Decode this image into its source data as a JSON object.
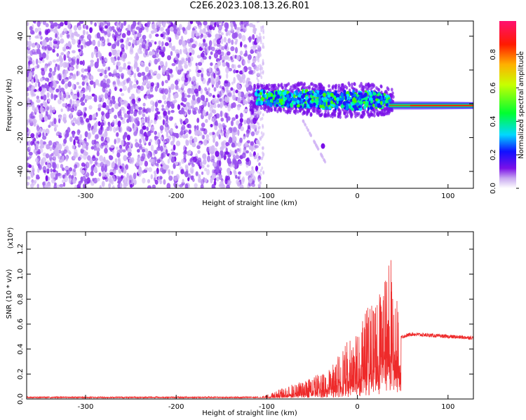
{
  "title": "C2E6.2023.108.13.26.R01",
  "colors": {
    "axis": "#000000",
    "snr_line": "#ee2a2a",
    "noise_purple": "#7a10e8",
    "noise_light": "#d2b7f5"
  },
  "chart_data": [
    {
      "type": "heatmap",
      "title": "",
      "xlabel": "Height of straight line (km)",
      "ylabel": "Frequency (Hz)",
      "xlim": [
        -365,
        128
      ],
      "ylim": [
        -50,
        49
      ],
      "x_ticks": [
        -300,
        -200,
        -100,
        0,
        100
      ],
      "x_tick_labels": [
        "-300",
        "-200",
        "-100",
        "0",
        "100"
      ],
      "y_ticks": [
        -40,
        -20,
        0,
        20,
        40
      ],
      "y_tick_labels": [
        "-40",
        "-20",
        "0",
        "20",
        "40"
      ],
      "noise_region_x": [
        -365,
        -108
      ],
      "signal_band": [
        {
          "x": -115,
          "freq": 4,
          "width": 6,
          "amp": 0.3
        },
        {
          "x": -90,
          "freq": 3,
          "width": 7,
          "amp": 0.35
        },
        {
          "x": -60,
          "freq": 3,
          "width": 8,
          "amp": 0.35
        },
        {
          "x": -30,
          "freq": 2,
          "width": 8,
          "amp": 0.35
        },
        {
          "x": 0,
          "freq": 2,
          "width": 9,
          "amp": 0.35
        },
        {
          "x": 30,
          "freq": 2,
          "width": 7,
          "amp": 0.4
        },
        {
          "x": 60,
          "freq": 0,
          "width": 4,
          "amp": 0.6
        },
        {
          "x": 128,
          "freq": -2,
          "width": 3,
          "amp": 0.9
        }
      ],
      "faint_feature": {
        "x": [
          -60,
          -35
        ],
        "freq": [
          -10,
          -35
        ]
      },
      "grid": false,
      "colorbar": {
        "label": "Normalized spectral amplitude",
        "range": [
          0.0,
          1.0
        ],
        "ticks": [
          0.0,
          0.2,
          0.4,
          0.6,
          0.8
        ],
        "tick_labels": [
          "0.0",
          "0.2",
          "0.4",
          "0.6",
          "0.8"
        ]
      }
    },
    {
      "type": "line",
      "title": "",
      "xlabel": "Height of straight line (km)",
      "ylabel": "SNR (10 * v/v)",
      "y_scale_label": "(x10⁴)",
      "xlim": [
        -365,
        128
      ],
      "ylim": [
        0.0,
        1.34
      ],
      "x_ticks": [
        -300,
        -200,
        -100,
        0,
        100
      ],
      "x_tick_labels": [
        "-300",
        "-200",
        "-100",
        "0",
        "100"
      ],
      "y_ticks": [
        0.0,
        0.2,
        0.4,
        0.6,
        0.8,
        1.0,
        1.2
      ],
      "y_tick_labels": [
        "0.0",
        "0.2",
        "0.4",
        "0.6",
        "0.8",
        "1.0",
        "1.2"
      ],
      "series": [
        {
          "name": "SNR",
          "x": [
            -365,
            -300,
            -250,
            -200,
            -150,
            -110,
            -100,
            -90,
            -80,
            -70,
            -60,
            -50,
            -40,
            -30,
            -20,
            -10,
            0,
            10,
            20,
            30,
            35,
            40,
            45,
            48,
            50,
            60,
            80,
            100,
            128
          ],
          "values": [
            0.01,
            0.01,
            0.01,
            0.01,
            0.01,
            0.01,
            0.03,
            0.05,
            0.08,
            0.1,
            0.12,
            0.15,
            0.18,
            0.2,
            0.3,
            0.4,
            0.5,
            0.6,
            0.7,
            0.8,
            1.0,
            0.85,
            0.7,
            0.5,
            0.5,
            0.52,
            0.51,
            0.5,
            0.49
          ]
        }
      ],
      "grid": false
    }
  ]
}
